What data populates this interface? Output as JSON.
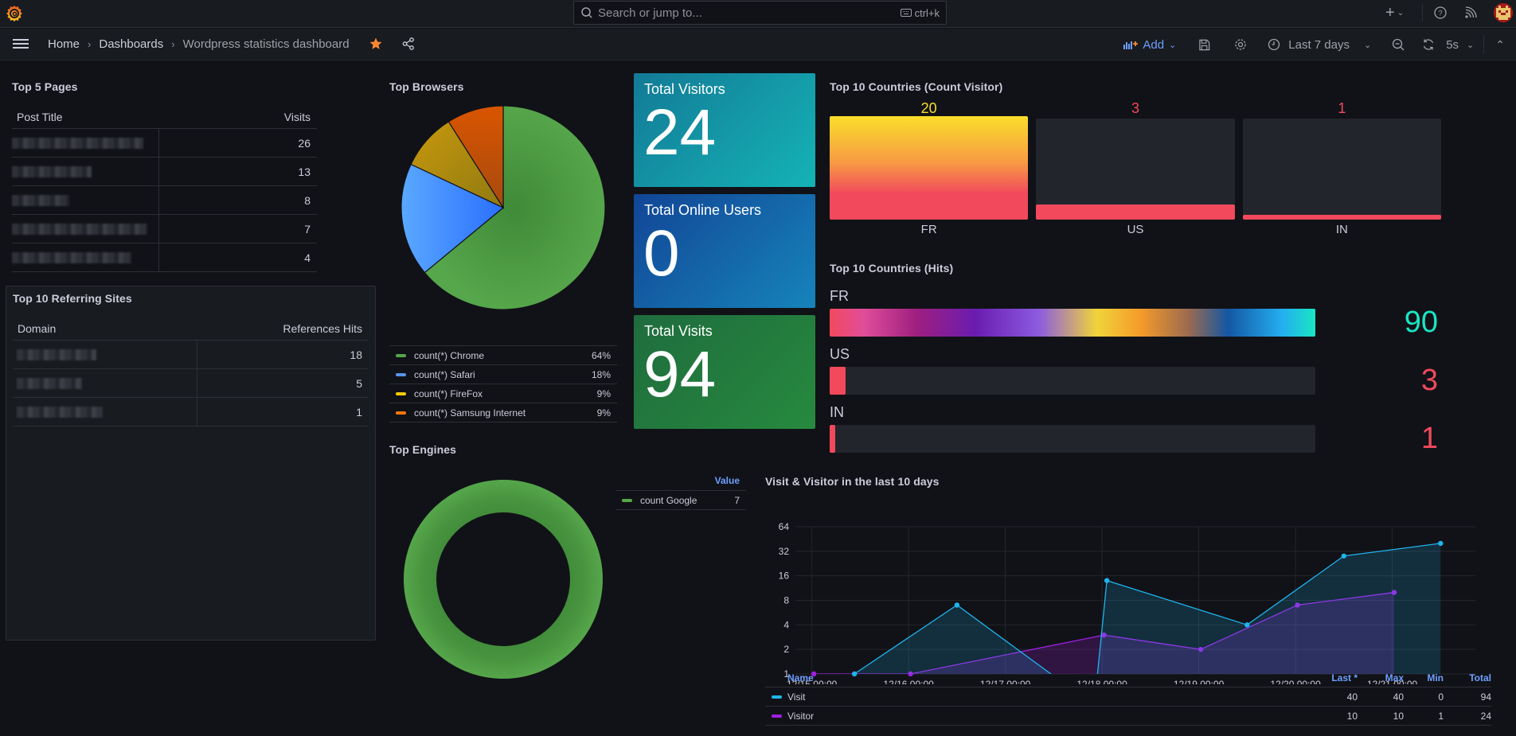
{
  "topbar": {
    "search_placeholder": "Search or jump to...",
    "search_shortcut": "ctrl+k",
    "icons": [
      "grafana-logo-icon",
      "search-icon",
      "keyboard-icon",
      "plus-icon",
      "chevron-down-icon",
      "help-icon",
      "rss-icon",
      "avatar"
    ]
  },
  "breadcrumb": {
    "items": [
      "Home",
      "Dashboards",
      "Wordpress statistics dashboard"
    ],
    "separator": "›"
  },
  "toolbar": {
    "add_label": "Add",
    "time_range": "Last 7 days",
    "refresh_interval": "5s"
  },
  "colors": {
    "accent": "#6e9fff",
    "star": "#ff8833",
    "green": "#56a64b",
    "blue": "#5794f2",
    "yellow": "#f2cc0c",
    "orange": "#ff780a",
    "red": "#f2495c",
    "visit": "#1fb4ed",
    "visitor": "#a11ee3"
  },
  "top_pages": {
    "title": "Top 5 Pages",
    "columns": [
      "Post Title",
      "Visits"
    ],
    "rows": [
      {
        "title": "[redacted]",
        "visits": "26"
      },
      {
        "title": "[redacted]",
        "visits": "13"
      },
      {
        "title": "[redacted]",
        "visits": "8"
      },
      {
        "title": "[redacted]",
        "visits": "7"
      },
      {
        "title": "[redacted]",
        "visits": "4"
      }
    ]
  },
  "referring_sites": {
    "title": "Top 10 Referring Sites",
    "columns": [
      "Domain",
      "References Hits"
    ],
    "rows": [
      {
        "domain": "[redacted]",
        "hits": "18"
      },
      {
        "domain": "[redacted]",
        "hits": "5"
      },
      {
        "domain": "[redacted]",
        "hits": "1"
      }
    ]
  },
  "stats": [
    {
      "title": "Total Visitors",
      "value": "24"
    },
    {
      "title": "Total Online Users",
      "value": "0"
    },
    {
      "title": "Total Visits",
      "value": "94"
    }
  ],
  "chart_data": [
    {
      "type": "pie",
      "title": "Top Browsers",
      "labels": [
        "count(*) Chrome",
        "count(*) Safari",
        "count(*) FireFox",
        "count(*) Samsung Internet"
      ],
      "values": [
        64,
        18,
        9,
        9
      ],
      "value_labels": [
        "64%",
        "18%",
        "9%",
        "9%"
      ],
      "colors": [
        "#56a64b",
        "#5794f2",
        "#f2cc0c",
        "#ff780a"
      ],
      "legend": "bottom"
    },
    {
      "type": "pie",
      "title": "Top Engines",
      "donut": true,
      "legend_header": "Value",
      "labels": [
        "count Google"
      ],
      "values": [
        7
      ],
      "colors": [
        "#56a64b"
      ],
      "legend": "right"
    },
    {
      "type": "bar",
      "title": "Top 10 Countries (Count Visitor)",
      "categories": [
        "FR",
        "US",
        "IN"
      ],
      "values": [
        20,
        3,
        1
      ],
      "value_colors": [
        "#fade2a",
        "#f2495c",
        "#f2495c"
      ],
      "ylim": [
        0,
        20
      ]
    },
    {
      "type": "bar",
      "orientation": "horizontal",
      "title": "Top 10 Countries (Hits)",
      "categories": [
        "FR",
        "US",
        "IN"
      ],
      "values": [
        90,
        3,
        1
      ],
      "value_colors": [
        "#19e6c4",
        "#f2495c",
        "#f2495c"
      ],
      "xlim": [
        0,
        90
      ]
    },
    {
      "type": "line",
      "title": "Visit & Visitor in the last 10 days",
      "yscale": "log2",
      "ylim": [
        1,
        64
      ],
      "yticks": [
        "1",
        "2",
        "4",
        "8",
        "16",
        "32",
        "64"
      ],
      "xticks": [
        "12/15 00:00",
        "12/16 00:00",
        "12/17 00:00",
        "12/18 00:00",
        "12/19 00:00",
        "12/20 00:00",
        "12/21 00:00"
      ],
      "x_unit": "days since 12/15 00:00",
      "series": [
        {
          "name": "Visit",
          "color": "#1fb4ed",
          "x": [
            0.44,
            1.5,
            2.92,
            3.05,
            4.5,
            5.5,
            6.5
          ],
          "y": [
            1,
            7,
            0,
            14,
            4,
            28,
            40
          ],
          "points_shown": [
            true,
            true,
            false,
            true,
            true,
            true,
            true
          ],
          "last": "40",
          "max": "40",
          "min": "0",
          "total": "94"
        },
        {
          "name": "Visitor",
          "color": "#a11ee3",
          "x": [
            0.02,
            1.02,
            3.02,
            4.02,
            5.02,
            6.02
          ],
          "y": [
            1,
            1,
            3,
            2,
            7,
            10
          ],
          "last": "10",
          "max": "10",
          "min": "1",
          "total": "24"
        }
      ],
      "legend": "bottom",
      "legend_columns": [
        "Name",
        "Last *",
        "Max",
        "Min",
        "Total"
      ],
      "grid": true
    }
  ]
}
